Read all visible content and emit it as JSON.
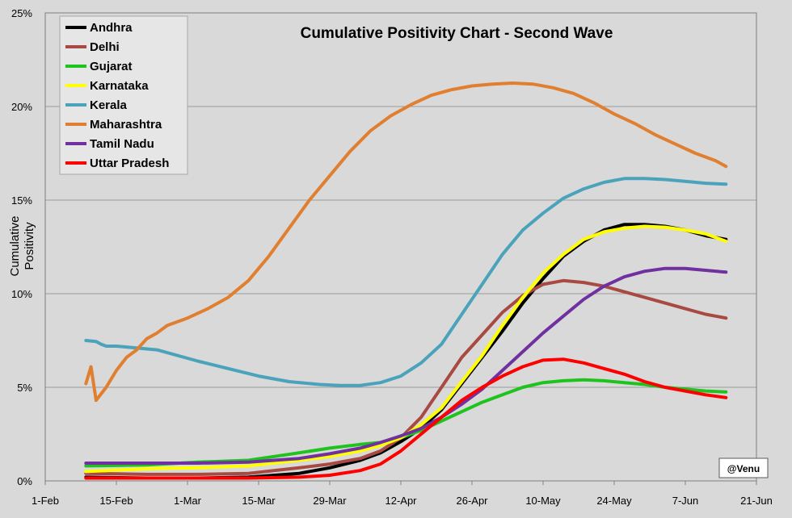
{
  "chart_data": {
    "type": "line",
    "title": "Cumulative Positivity Chart - Second Wave",
    "ylabel_lines": [
      "Cumulative",
      "Positivity"
    ],
    "xlabel": "",
    "credit": "@Venu",
    "x_ticks": [
      {
        "day": 0,
        "label": "1-Feb"
      },
      {
        "day": 14,
        "label": "15-Feb"
      },
      {
        "day": 28,
        "label": "1-Mar"
      },
      {
        "day": 42,
        "label": "15-Mar"
      },
      {
        "day": 56,
        "label": "29-Mar"
      },
      {
        "day": 70,
        "label": "12-Apr"
      },
      {
        "day": 84,
        "label": "26-Apr"
      },
      {
        "day": 98,
        "label": "10-May"
      },
      {
        "day": 112,
        "label": "24-May"
      },
      {
        "day": 126,
        "label": "7-Jun"
      },
      {
        "day": 140,
        "label": "21-Jun"
      }
    ],
    "xlim": [
      0,
      140
    ],
    "ylim": [
      0,
      25
    ],
    "y_ticks": [
      0,
      5,
      10,
      15,
      20,
      25
    ],
    "y_tick_labels": [
      "0%",
      "5%",
      "10%",
      "15%",
      "20%",
      "25%"
    ],
    "grid": true,
    "legend_position": "top-left",
    "series": [
      {
        "name": "Andhra",
        "color": "#000000",
        "points": [
          [
            8,
            0.2
          ],
          [
            20,
            0.15
          ],
          [
            30,
            0.15
          ],
          [
            40,
            0.2
          ],
          [
            50,
            0.4
          ],
          [
            56,
            0.7
          ],
          [
            62,
            1.1
          ],
          [
            66,
            1.5
          ],
          [
            70,
            2.1
          ],
          [
            74,
            2.8
          ],
          [
            78,
            3.8
          ],
          [
            82,
            5.2
          ],
          [
            86,
            6.6
          ],
          [
            90,
            8.0
          ],
          [
            94,
            9.5
          ],
          [
            98,
            10.8
          ],
          [
            102,
            12.0
          ],
          [
            106,
            12.8
          ],
          [
            110,
            13.4
          ],
          [
            114,
            13.7
          ],
          [
            118,
            13.7
          ],
          [
            122,
            13.6
          ],
          [
            126,
            13.4
          ],
          [
            130,
            13.1
          ],
          [
            134,
            12.9
          ]
        ]
      },
      {
        "name": "Delhi",
        "color": "#a84a42",
        "points": [
          [
            8,
            0.4
          ],
          [
            20,
            0.35
          ],
          [
            30,
            0.35
          ],
          [
            40,
            0.4
          ],
          [
            50,
            0.7
          ],
          [
            56,
            0.9
          ],
          [
            62,
            1.2
          ],
          [
            66,
            1.6
          ],
          [
            70,
            2.3
          ],
          [
            74,
            3.4
          ],
          [
            78,
            5.0
          ],
          [
            82,
            6.6
          ],
          [
            86,
            7.8
          ],
          [
            90,
            9.0
          ],
          [
            94,
            9.9
          ],
          [
            98,
            10.5
          ],
          [
            102,
            10.7
          ],
          [
            106,
            10.6
          ],
          [
            110,
            10.4
          ],
          [
            114,
            10.1
          ],
          [
            118,
            9.8
          ],
          [
            122,
            9.5
          ],
          [
            126,
            9.2
          ],
          [
            130,
            8.9
          ],
          [
            134,
            8.7
          ]
        ]
      },
      {
        "name": "Gujarat",
        "color": "#1ec31e",
        "points": [
          [
            8,
            0.8
          ],
          [
            20,
            0.85
          ],
          [
            30,
            1.0
          ],
          [
            40,
            1.1
          ],
          [
            50,
            1.5
          ],
          [
            56,
            1.75
          ],
          [
            62,
            1.95
          ],
          [
            66,
            2.05
          ],
          [
            70,
            2.3
          ],
          [
            74,
            2.7
          ],
          [
            78,
            3.2
          ],
          [
            82,
            3.7
          ],
          [
            86,
            4.2
          ],
          [
            90,
            4.6
          ],
          [
            94,
            5.0
          ],
          [
            98,
            5.25
          ],
          [
            102,
            5.35
          ],
          [
            106,
            5.4
          ],
          [
            110,
            5.35
          ],
          [
            114,
            5.25
          ],
          [
            118,
            5.15
          ],
          [
            122,
            5.0
          ],
          [
            126,
            4.9
          ],
          [
            130,
            4.8
          ],
          [
            134,
            4.75
          ]
        ]
      },
      {
        "name": "Karnataka",
        "color": "#ffff00",
        "points": [
          [
            8,
            0.5
          ],
          [
            20,
            0.65
          ],
          [
            30,
            0.7
          ],
          [
            40,
            0.8
          ],
          [
            50,
            1.1
          ],
          [
            56,
            1.3
          ],
          [
            62,
            1.6
          ],
          [
            66,
            1.9
          ],
          [
            70,
            2.3
          ],
          [
            74,
            3.0
          ],
          [
            78,
            3.9
          ],
          [
            82,
            5.3
          ],
          [
            86,
            6.7
          ],
          [
            90,
            8.3
          ],
          [
            94,
            9.8
          ],
          [
            98,
            11.1
          ],
          [
            102,
            12.1
          ],
          [
            106,
            12.9
          ],
          [
            110,
            13.3
          ],
          [
            114,
            13.5
          ],
          [
            118,
            13.6
          ],
          [
            122,
            13.55
          ],
          [
            126,
            13.4
          ],
          [
            130,
            13.2
          ],
          [
            134,
            12.8
          ]
        ]
      },
      {
        "name": "Kerala",
        "color": "#4aa3bb",
        "points": [
          [
            8,
            7.5
          ],
          [
            10,
            7.45
          ],
          [
            11,
            7.3
          ],
          [
            12,
            7.2
          ],
          [
            14,
            7.2
          ],
          [
            18,
            7.1
          ],
          [
            22,
            7.0
          ],
          [
            30,
            6.4
          ],
          [
            36,
            6.0
          ],
          [
            42,
            5.6
          ],
          [
            48,
            5.3
          ],
          [
            54,
            5.15
          ],
          [
            58,
            5.1
          ],
          [
            62,
            5.1
          ],
          [
            66,
            5.25
          ],
          [
            70,
            5.6
          ],
          [
            74,
            6.3
          ],
          [
            78,
            7.3
          ],
          [
            82,
            8.9
          ],
          [
            86,
            10.5
          ],
          [
            90,
            12.1
          ],
          [
            94,
            13.4
          ],
          [
            98,
            14.3
          ],
          [
            102,
            15.1
          ],
          [
            106,
            15.6
          ],
          [
            110,
            15.95
          ],
          [
            114,
            16.15
          ],
          [
            118,
            16.15
          ],
          [
            122,
            16.1
          ],
          [
            126,
            16.0
          ],
          [
            130,
            15.9
          ],
          [
            134,
            15.85
          ]
        ]
      },
      {
        "name": "Maharashtra",
        "color": "#e07f30",
        "points": [
          [
            8,
            5.2
          ],
          [
            9,
            6.1
          ],
          [
            10,
            4.3
          ],
          [
            12,
            5.0
          ],
          [
            14,
            5.9
          ],
          [
            16,
            6.6
          ],
          [
            18,
            7.0
          ],
          [
            20,
            7.6
          ],
          [
            22,
            7.9
          ],
          [
            24,
            8.3
          ],
          [
            28,
            8.7
          ],
          [
            32,
            9.2
          ],
          [
            36,
            9.8
          ],
          [
            40,
            10.7
          ],
          [
            44,
            12.0
          ],
          [
            48,
            13.5
          ],
          [
            52,
            15.0
          ],
          [
            56,
            16.3
          ],
          [
            60,
            17.6
          ],
          [
            64,
            18.7
          ],
          [
            68,
            19.5
          ],
          [
            72,
            20.1
          ],
          [
            76,
            20.6
          ],
          [
            80,
            20.9
          ],
          [
            84,
            21.1
          ],
          [
            88,
            21.2
          ],
          [
            92,
            21.25
          ],
          [
            96,
            21.2
          ],
          [
            100,
            21.0
          ],
          [
            104,
            20.7
          ],
          [
            108,
            20.2
          ],
          [
            112,
            19.6
          ],
          [
            116,
            19.1
          ],
          [
            120,
            18.5
          ],
          [
            124,
            18.0
          ],
          [
            128,
            17.5
          ],
          [
            132,
            17.1
          ],
          [
            134,
            16.8
          ]
        ]
      },
      {
        "name": "Tamil Nadu",
        "color": "#7030a0",
        "points": [
          [
            8,
            0.95
          ],
          [
            20,
            0.95
          ],
          [
            30,
            0.95
          ],
          [
            40,
            1.0
          ],
          [
            50,
            1.2
          ],
          [
            56,
            1.45
          ],
          [
            62,
            1.75
          ],
          [
            66,
            2.05
          ],
          [
            70,
            2.4
          ],
          [
            74,
            2.8
          ],
          [
            78,
            3.4
          ],
          [
            82,
            4.1
          ],
          [
            86,
            4.9
          ],
          [
            90,
            5.9
          ],
          [
            94,
            6.9
          ],
          [
            98,
            7.9
          ],
          [
            102,
            8.8
          ],
          [
            106,
            9.7
          ],
          [
            110,
            10.4
          ],
          [
            114,
            10.9
          ],
          [
            118,
            11.2
          ],
          [
            122,
            11.35
          ],
          [
            126,
            11.35
          ],
          [
            130,
            11.25
          ],
          [
            134,
            11.15
          ]
        ]
      },
      {
        "name": "Uttar Pradesh",
        "color": "#ff0000",
        "points": [
          [
            8,
            0.15
          ],
          [
            20,
            0.15
          ],
          [
            30,
            0.15
          ],
          [
            40,
            0.15
          ],
          [
            50,
            0.2
          ],
          [
            56,
            0.3
          ],
          [
            62,
            0.55
          ],
          [
            66,
            0.9
          ],
          [
            70,
            1.6
          ],
          [
            74,
            2.5
          ],
          [
            78,
            3.4
          ],
          [
            82,
            4.3
          ],
          [
            86,
            5.0
          ],
          [
            90,
            5.6
          ],
          [
            94,
            6.1
          ],
          [
            98,
            6.45
          ],
          [
            102,
            6.5
          ],
          [
            106,
            6.3
          ],
          [
            110,
            6.0
          ],
          [
            114,
            5.7
          ],
          [
            118,
            5.3
          ],
          [
            122,
            5.0
          ],
          [
            126,
            4.8
          ],
          [
            130,
            4.6
          ],
          [
            134,
            4.45
          ]
        ]
      }
    ]
  }
}
